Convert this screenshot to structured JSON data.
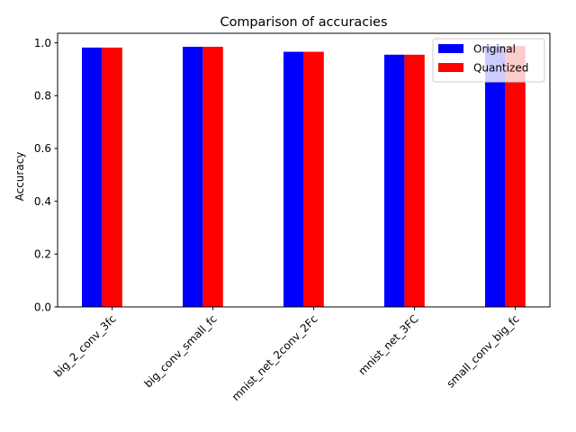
{
  "chart_data": {
    "type": "bar",
    "title": "Comparison of accuracies",
    "xlabel": "",
    "ylabel": "Accuracy",
    "categories": [
      "big_2_conv_3fc",
      "big_conv_small_fc",
      "mnist_net_2conv_2Fc",
      "mnist_net_3FC",
      "small_conv_big_fc"
    ],
    "series": [
      {
        "name": "Original",
        "color": "#0000ff",
        "values": [
          0.982,
          0.985,
          0.966,
          0.955,
          0.988
        ]
      },
      {
        "name": "Quantized",
        "color": "#ff0000",
        "values": [
          0.982,
          0.985,
          0.966,
          0.955,
          0.988
        ]
      }
    ],
    "ylim": [
      0,
      1.036
    ],
    "yticks": [
      "0.0",
      "0.2",
      "0.4",
      "0.6",
      "0.8",
      "1.0"
    ],
    "grid": false,
    "legend_position": "top-right"
  }
}
